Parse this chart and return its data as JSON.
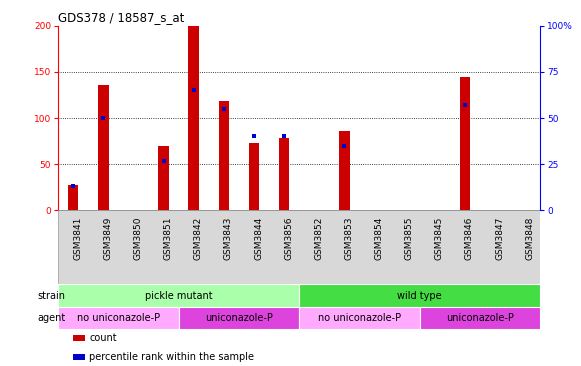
{
  "title": "GDS378 / 18587_s_at",
  "samples": [
    "GSM3841",
    "GSM3849",
    "GSM3850",
    "GSM3851",
    "GSM3842",
    "GSM3843",
    "GSM3844",
    "GSM3856",
    "GSM3852",
    "GSM3853",
    "GSM3854",
    "GSM3855",
    "GSM3845",
    "GSM3846",
    "GSM3847",
    "GSM3848"
  ],
  "counts": [
    28,
    136,
    0,
    70,
    200,
    118,
    73,
    78,
    0,
    86,
    0,
    0,
    0,
    144,
    0,
    0
  ],
  "percentiles": [
    13,
    50,
    0,
    27,
    65,
    55,
    40,
    40,
    0,
    35,
    0,
    0,
    0,
    57,
    0,
    0
  ],
  "bar_color": "#cc0000",
  "pct_color": "#0000cc",
  "ylim_left": [
    0,
    200
  ],
  "ylim_right": [
    0,
    100
  ],
  "yticks_left": [
    0,
    50,
    100,
    150,
    200
  ],
  "yticks_right": [
    0,
    25,
    50,
    75,
    100
  ],
  "yticklabels_left": [
    "0",
    "50",
    "100",
    "150",
    "200"
  ],
  "yticklabels_right": [
    "0",
    "25",
    "50",
    "75",
    "100%"
  ],
  "strain_groups": [
    {
      "label": "pickle mutant",
      "start": 0,
      "end": 7,
      "color": "#aaffaa"
    },
    {
      "label": "wild type",
      "start": 8,
      "end": 15,
      "color": "#44dd44"
    }
  ],
  "agent_groups": [
    {
      "label": "no uniconazole-P",
      "start": 0,
      "end": 3,
      "color": "#ffaaff"
    },
    {
      "label": "uniconazole-P",
      "start": 4,
      "end": 7,
      "color": "#dd44dd"
    },
    {
      "label": "no uniconazole-P",
      "start": 8,
      "end": 11,
      "color": "#ffaaff"
    },
    {
      "label": "uniconazole-P",
      "start": 12,
      "end": 15,
      "color": "#dd44dd"
    }
  ],
  "legend_items": [
    {
      "label": "count",
      "color": "#cc0000"
    },
    {
      "label": "percentile rank within the sample",
      "color": "#0000cc"
    }
  ],
  "strain_label": "strain",
  "agent_label": "agent",
  "bar_width": 0.35,
  "tick_fontsize": 6.5,
  "label_fontsize": 7
}
